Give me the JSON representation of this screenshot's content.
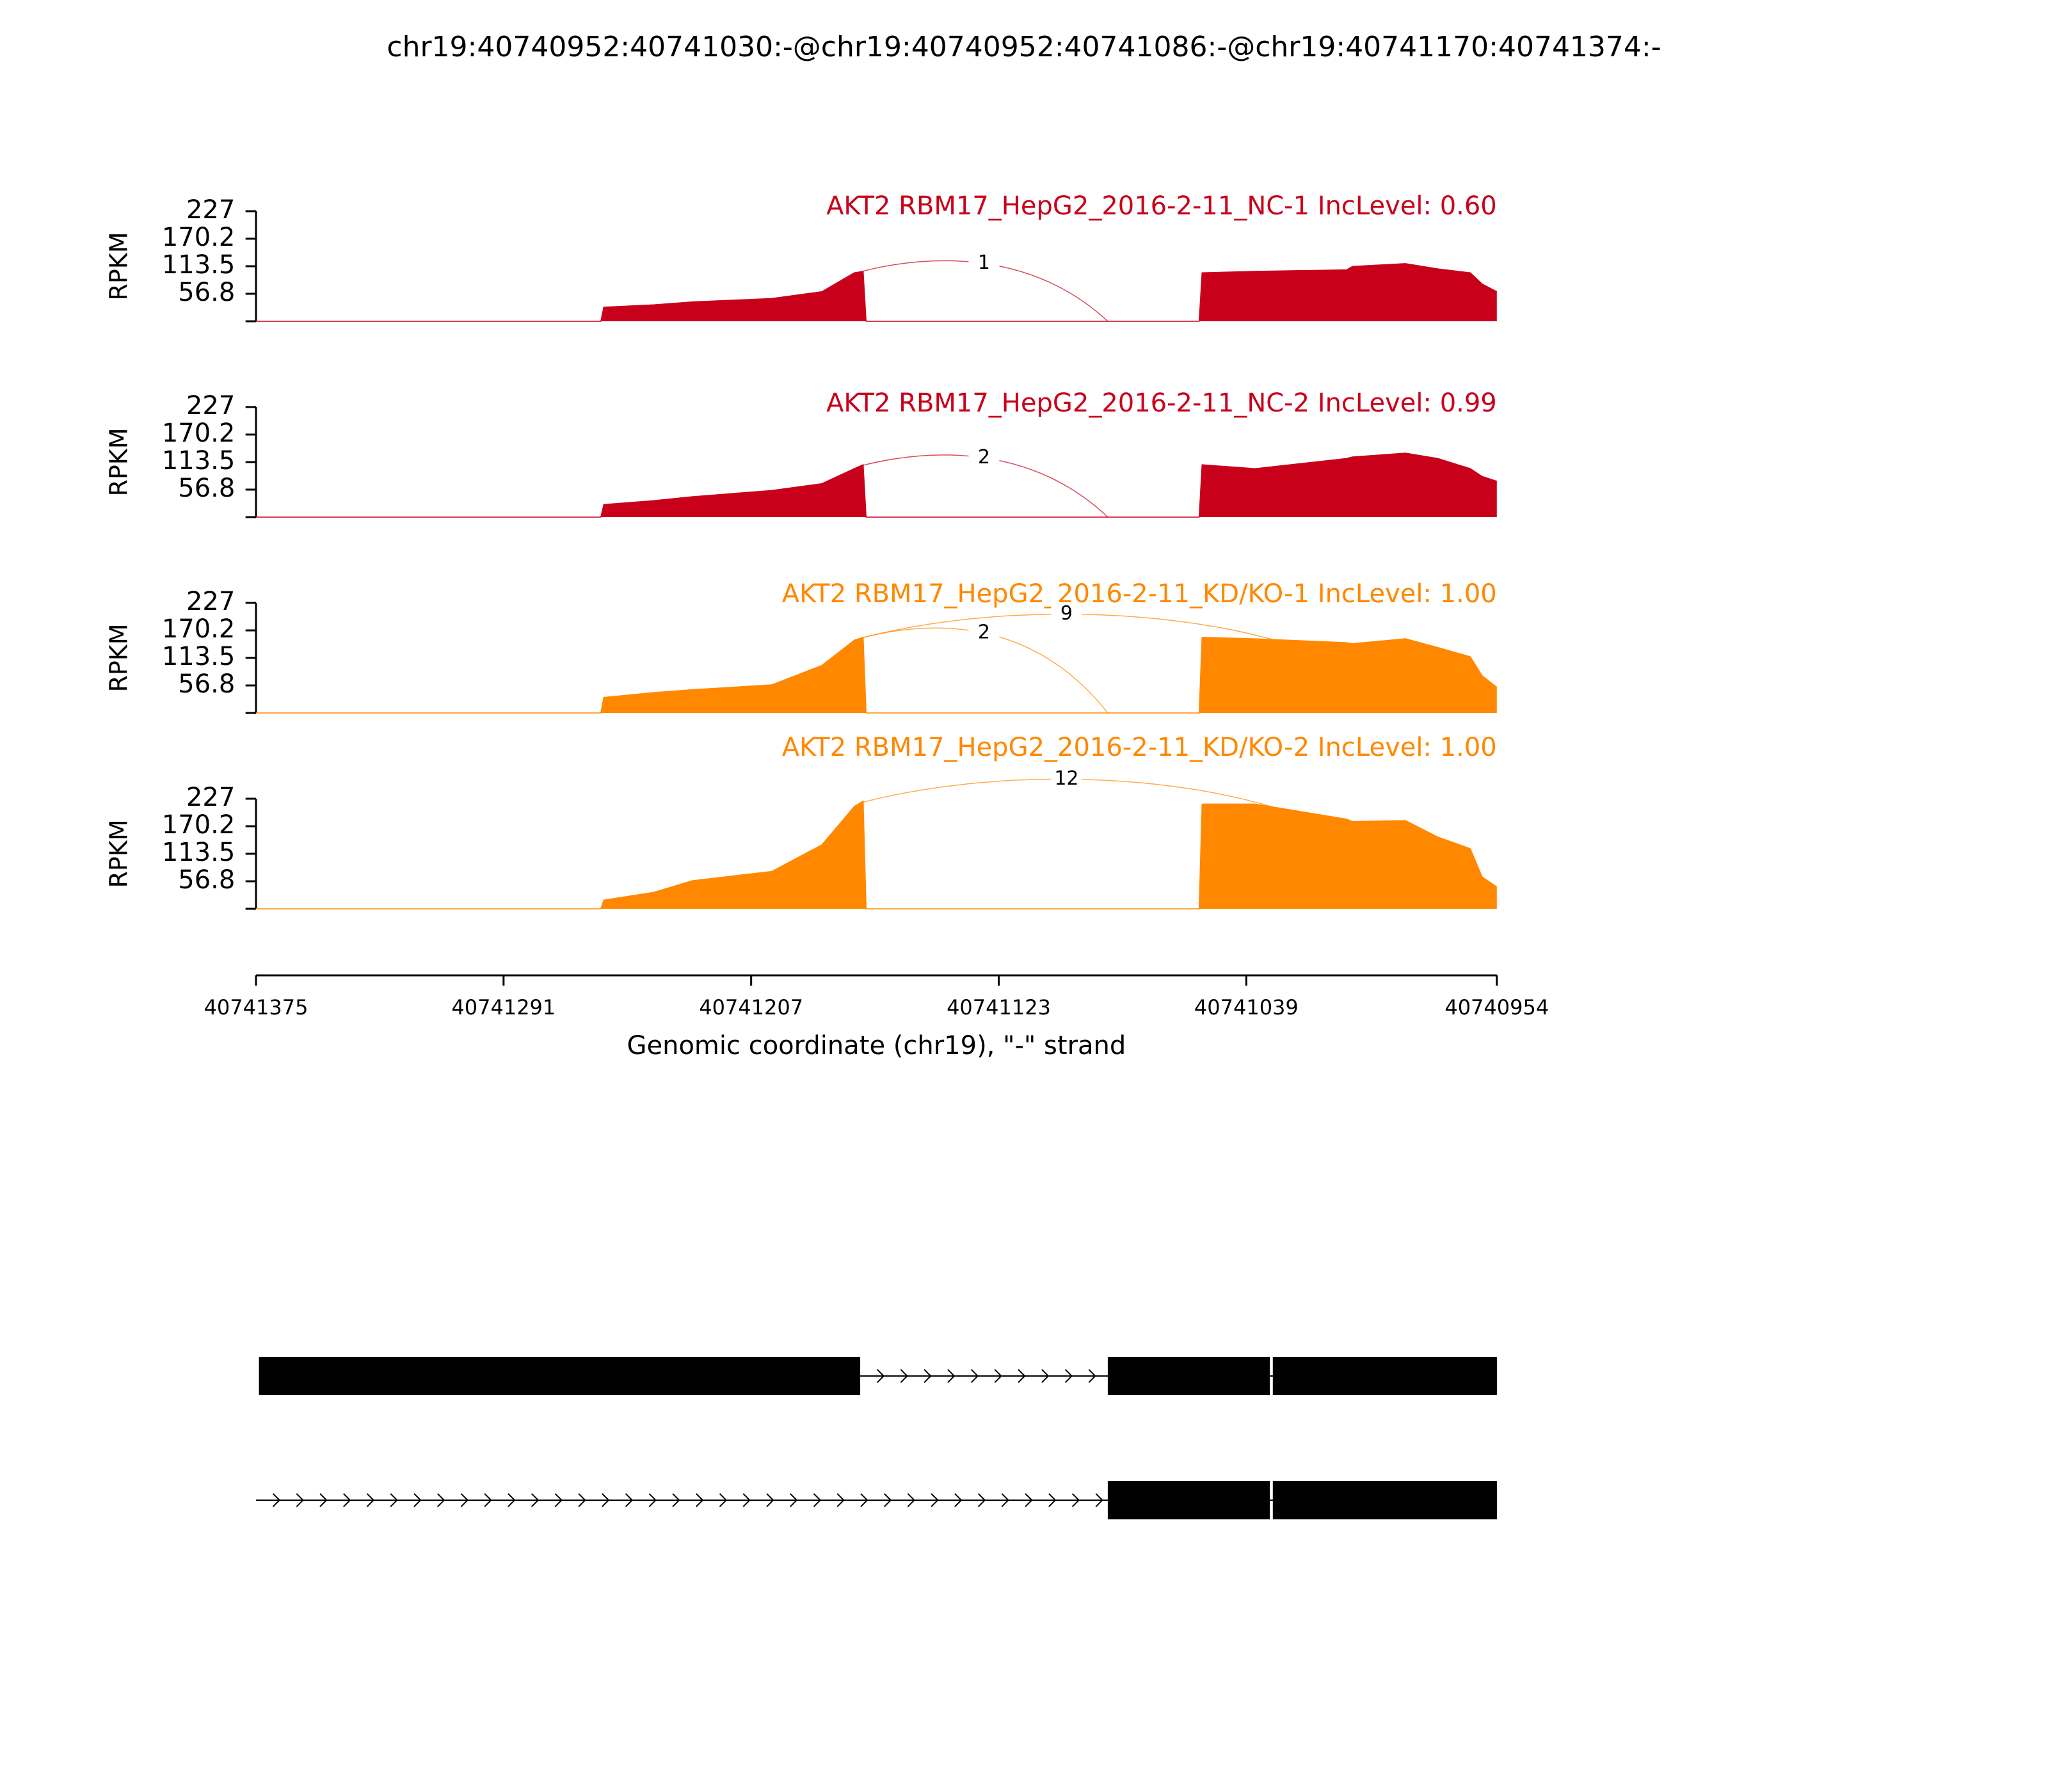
{
  "title": "chr19:40740952:40741030:-@chr19:40740952:40741086:-@chr19:40741170:40741374:-",
  "chart_data": [
    {
      "type": "area",
      "title": "AKT2 RBM17_HepG2_2016-2-11_NC-1 IncLevel: 0.60",
      "ylabel": "RPKM",
      "color": "#c9001a",
      "x": [
        40741375,
        40741258,
        40741257,
        40741240,
        40741227,
        40741200,
        40741183,
        40741172,
        40741169,
        40741168,
        40741055,
        40741054,
        40741036,
        40741005,
        40741003,
        40740985,
        40740974,
        40740963,
        40740959,
        40740954
      ],
      "values": [
        0,
        0,
        29,
        34,
        40,
        47,
        61,
        100,
        103,
        0,
        0,
        100,
        103,
        106,
        113,
        119,
        108,
        100,
        77,
        61
      ],
      "xlim": [
        40741375,
        40740954
      ],
      "ylim": [
        0,
        227
      ],
      "yticks": [
        56.8,
        113.5,
        170.2,
        227
      ],
      "junctions": [
        {
          "start": 40741170,
          "end": 40741086,
          "count": 1
        }
      ]
    },
    {
      "type": "area",
      "title": "AKT2 RBM17_HepG2_2016-2-11_NC-2 IncLevel: 0.99",
      "ylabel": "RPKM",
      "color": "#c9001a",
      "x": [
        40741375,
        40741258,
        40741257,
        40741240,
        40741227,
        40741200,
        40741183,
        40741172,
        40741169,
        40741168,
        40741055,
        40741054,
        40741036,
        40741005,
        40741003,
        40740985,
        40740974,
        40740963,
        40740959,
        40740954
      ],
      "values": [
        0,
        0,
        26,
        34,
        42,
        55,
        69,
        100,
        108,
        0,
        0,
        108,
        100,
        121,
        124,
        132,
        121,
        100,
        84,
        74
      ],
      "xlim": [
        40741375,
        40740954
      ],
      "ylim": [
        0,
        227
      ],
      "yticks": [
        56.8,
        113.5,
        170.2,
        227
      ],
      "junctions": [
        {
          "start": 40741170,
          "end": 40741086,
          "count": 2
        }
      ]
    },
    {
      "type": "area",
      "title": "AKT2 RBM17_HepG2_2016-2-11_KD/KO-1 IncLevel: 1.00",
      "ylabel": "RPKM",
      "color": "#ff8800",
      "x": [
        40741375,
        40741258,
        40741257,
        40741240,
        40741227,
        40741200,
        40741183,
        40741172,
        40741169,
        40741168,
        40741055,
        40741054,
        40741036,
        40741005,
        40741003,
        40740985,
        40740974,
        40740963,
        40740959,
        40740954
      ],
      "values": [
        0,
        0,
        32,
        42,
        48,
        58,
        98,
        150,
        156,
        0,
        0,
        156,
        153,
        145,
        143,
        153,
        135,
        116,
        77,
        53
      ],
      "xlim": [
        40741375,
        40740954
      ],
      "ylim": [
        0,
        227
      ],
      "yticks": [
        56.8,
        113.5,
        170.2,
        227
      ],
      "junctions": [
        {
          "start": 40741170,
          "end": 40741030,
          "count": 9
        },
        {
          "start": 40741170,
          "end": 40741086,
          "count": 2
        }
      ]
    },
    {
      "type": "area",
      "title": "AKT2 RBM17_HepG2_2016-2-11_KD/KO-2 IncLevel: 1.00",
      "ylabel": "RPKM",
      "color": "#ff8800",
      "x": [
        40741375,
        40741258,
        40741257,
        40741240,
        40741227,
        40741200,
        40741183,
        40741172,
        40741169,
        40741168,
        40741055,
        40741054,
        40741036,
        40741005,
        40741003,
        40740985,
        40740974,
        40740963,
        40740959,
        40740954
      ],
      "values": [
        0,
        0,
        18,
        34,
        58,
        77,
        132,
        211,
        222,
        0,
        0,
        216,
        216,
        185,
        180,
        182,
        148,
        124,
        66,
        45
      ],
      "xlim": [
        40741375,
        40740954
      ],
      "ylim": [
        0,
        227
      ],
      "yticks": [
        56.8,
        113.5,
        170.2,
        227
      ],
      "junctions": [
        {
          "start": 40741170,
          "end": 40741030,
          "count": 12
        }
      ],
      "xticks": [
        40741375,
        40741291,
        40741207,
        40741123,
        40741039,
        40740954
      ],
      "xlabel": "Genomic coordinate (chr19), \"-\" strand"
    },
    {
      "type": "gene_model",
      "xlim": [
        40741375,
        40740954
      ],
      "transcripts": [
        {
          "span": [
            40741170,
            40740952
          ],
          "exons": [
            [
              40741374,
              40741170
            ],
            [
              40741086,
              40741031
            ],
            [
              40741030,
              40740952
            ]
          ]
        },
        {
          "span": [
            40741375,
            40740952
          ],
          "exons": [
            [
              40741086,
              40741031
            ],
            [
              40741030,
              40740952
            ]
          ]
        }
      ]
    }
  ]
}
